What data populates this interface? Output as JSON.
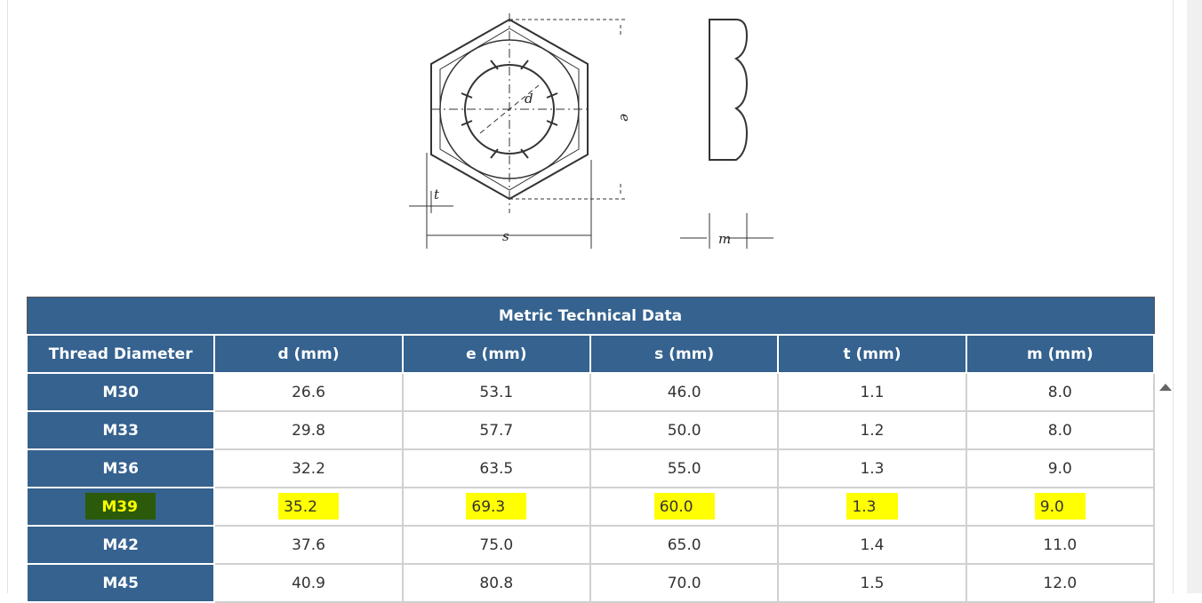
{
  "drawing": {
    "labels": [
      "d",
      "e",
      "s",
      "t",
      "m"
    ]
  },
  "table": {
    "title": "Metric Technical Data",
    "columns": [
      "Thread Diameter",
      "d (mm)",
      "e (mm)",
      "s (mm)",
      "t (mm)",
      "m (mm)"
    ],
    "rows": [
      [
        "M30",
        "26.6",
        "53.1",
        "46.0",
        "1.1",
        "8.0"
      ],
      [
        "M33",
        "29.8",
        "57.7",
        "50.0",
        "1.2",
        "8.0"
      ],
      [
        "M36",
        "32.2",
        "63.5",
        "55.0",
        "1.3",
        "9.0"
      ],
      [
        "M39",
        "35.2",
        "69.3",
        "60.0",
        "1.3",
        "9.0"
      ],
      [
        "M42",
        "37.6",
        "75.0",
        "65.0",
        "1.4",
        "11.0"
      ],
      [
        "M45",
        "40.9",
        "80.8",
        "70.0",
        "1.5",
        "12.0"
      ]
    ],
    "highlighted_row": "M39"
  }
}
